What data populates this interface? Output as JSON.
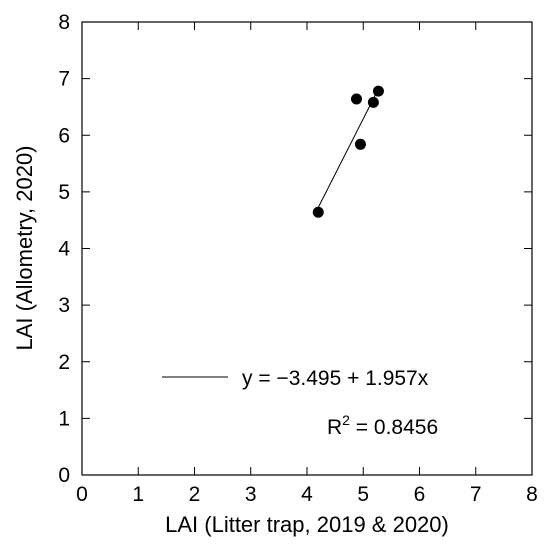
{
  "chart_data": {
    "type": "scatter",
    "title": "",
    "xlabel": "LAI (Litter trap, 2019 & 2020)",
    "ylabel": "LAI (Allometry, 2020)",
    "xlim": [
      0,
      8
    ],
    "ylim": [
      0,
      8
    ],
    "xticks": [
      "0",
      "1",
      "2",
      "3",
      "4",
      "5",
      "6",
      "7",
      "8"
    ],
    "yticks": [
      "0",
      "1",
      "2",
      "3",
      "4",
      "5",
      "6",
      "7",
      "8"
    ],
    "grid": false,
    "series": [
      {
        "x": [
          4.2,
          4.88,
          4.95,
          5.18,
          5.27
        ],
        "y": [
          4.64,
          6.64,
          5.84,
          6.58,
          6.78
        ],
        "color": "#000000"
      }
    ],
    "regression": {
      "intercept": -3.495,
      "slope": 1.957,
      "x_range": [
        4.2,
        5.27
      ],
      "equation_text": "y = −3.495 + 1.957x",
      "r2_prefix": "R",
      "r2_superscript": "2",
      "r2_value_text": " = 0.8456"
    }
  }
}
